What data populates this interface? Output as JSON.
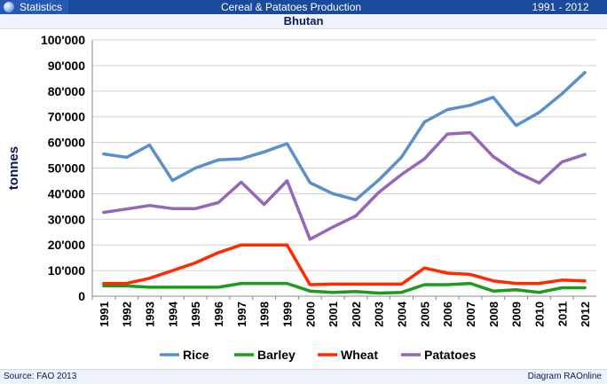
{
  "header": {
    "left_label": "Statistics",
    "title": "Cereal & Patatoes Production",
    "range": "1991 - 2012"
  },
  "subtitle": "Bhutan",
  "footer": {
    "source": "Source: FAO 2013",
    "credit": "Diagram RAOnline"
  },
  "colors": {
    "header_bg": "#1a4a9c",
    "rice": "#5b8fc9",
    "barley": "#1e9a1e",
    "wheat": "#ff2a00",
    "patatoes": "#9467b8"
  },
  "chart_data": {
    "type": "line",
    "title": "Cereal & Patatoes Production",
    "subtitle": "Bhutan",
    "xlabel": "",
    "ylabel": "tonnes",
    "ylim": [
      0,
      100000
    ],
    "yticks": [
      0,
      10000,
      20000,
      30000,
      40000,
      50000,
      60000,
      70000,
      80000,
      90000,
      100000
    ],
    "ytick_labels": [
      "0",
      "10'000",
      "20'000",
      "30'000",
      "40'000",
      "50'000",
      "60'000",
      "70'000",
      "80'000",
      "90'000",
      "100'000"
    ],
    "x": [
      "1991",
      "1992",
      "1993",
      "1994",
      "1995",
      "1996",
      "1997",
      "1998",
      "1999",
      "2000",
      "2001",
      "2002",
      "2003",
      "2004",
      "2005",
      "2006",
      "2007",
      "2008",
      "2009",
      "2010",
      "2011",
      "2012"
    ],
    "grid": true,
    "legend": "bottom",
    "series": [
      {
        "name": "Rice",
        "color": "#5b8fc9",
        "values": [
          55500,
          54200,
          59000,
          45200,
          50000,
          53200,
          53600,
          56300,
          59500,
          44300,
          40000,
          37600,
          45300,
          54300,
          68000,
          72800,
          74500,
          77600,
          66600,
          71700,
          79000,
          87300
        ]
      },
      {
        "name": "Barley",
        "color": "#1e9a1e",
        "values": [
          4000,
          4000,
          3500,
          3500,
          3500,
          3500,
          5000,
          5000,
          5000,
          2000,
          1500,
          1800,
          1200,
          1500,
          4500,
          4500,
          5000,
          2000,
          2500,
          1500,
          3300,
          3300
        ]
      },
      {
        "name": "Wheat",
        "color": "#ff2a00",
        "values": [
          5000,
          5000,
          7000,
          10000,
          13000,
          17000,
          20000,
          20000,
          20000,
          4500,
          4700,
          4700,
          4700,
          4700,
          11000,
          9000,
          8500,
          6000,
          5000,
          5000,
          6300,
          6000
        ]
      },
      {
        "name": "Patatoes",
        "color": "#9467b8",
        "values": [
          32700,
          34000,
          35400,
          34200,
          34200,
          36500,
          44500,
          35800,
          45000,
          22200,
          27000,
          31300,
          40500,
          47500,
          53600,
          63300,
          63800,
          54500,
          48400,
          44200,
          52400,
          55300
        ]
      }
    ]
  }
}
